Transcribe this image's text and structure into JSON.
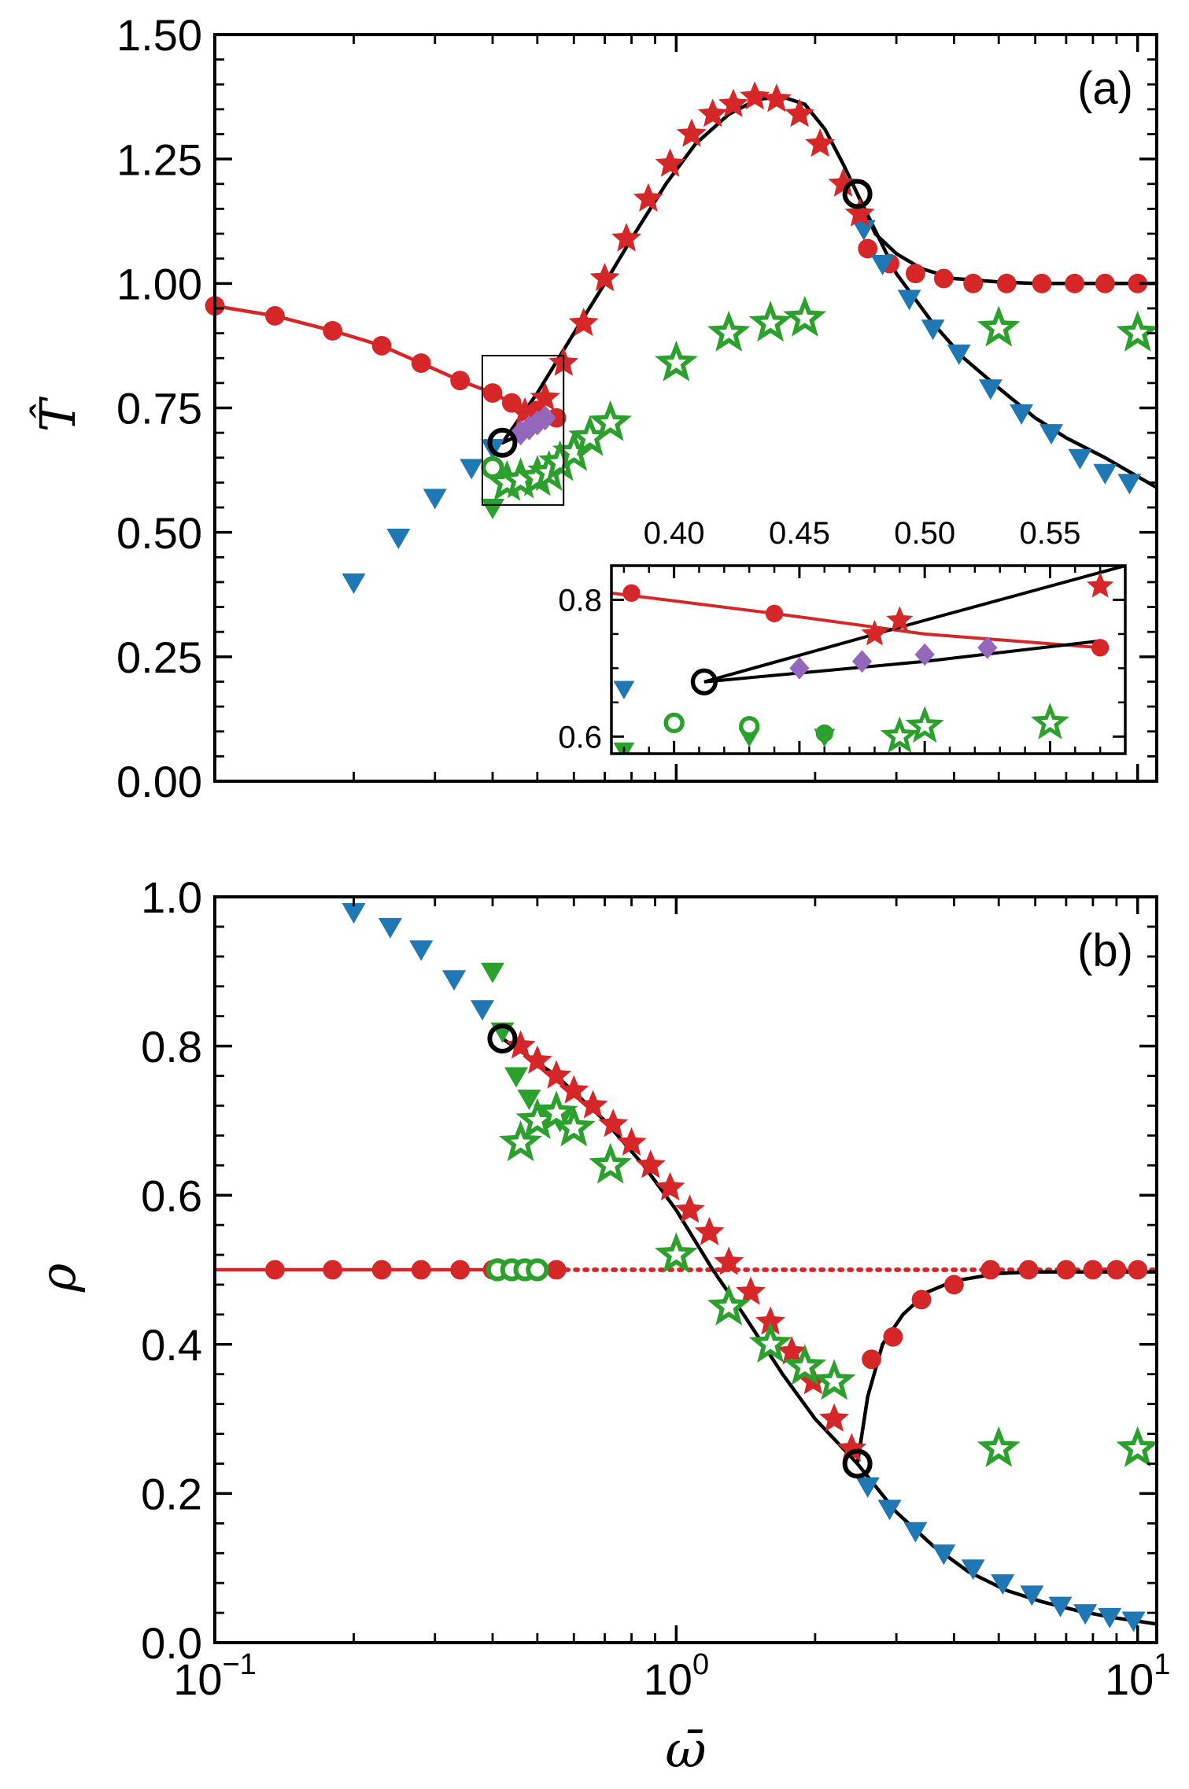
{
  "chart_data": [
    {
      "type": "scatter",
      "panel_label": "(a)",
      "ylabel": "T̂",
      "xlabel": "",
      "xscale": "log",
      "xlim": [
        0.1,
        11
      ],
      "ylim": [
        0,
        1.5
      ],
      "yticks": [
        "0.00",
        "0.25",
        "0.50",
        "0.75",
        "1.00",
        "1.25",
        "1.50"
      ],
      "colors": {
        "red": "#d62728",
        "blue": "#1f77b4",
        "green": "#2ca02c",
        "purple": "#9467bd",
        "black": "#000000"
      },
      "series": [
        {
          "name": "red-circles-line",
          "marker": "circle",
          "color": "#d62728",
          "line": "solid",
          "x": [
            0.1,
            0.135,
            0.18,
            0.23,
            0.28,
            0.34,
            0.4,
            0.44,
            0.5,
            0.55
          ],
          "y": [
            0.955,
            0.935,
            0.905,
            0.875,
            0.84,
            0.805,
            0.78,
            0.76,
            0.745,
            0.73
          ]
        },
        {
          "name": "red-circles-high",
          "marker": "circle",
          "color": "#d62728",
          "x": [
            2.6,
            2.9,
            3.3,
            3.8,
            4.4,
            5.2,
            6.2,
            7.3,
            8.5,
            10
          ],
          "y": [
            1.07,
            1.04,
            1.02,
            1.01,
            1.0,
            1.0,
            1.0,
            1.0,
            1.0,
            1.0
          ]
        },
        {
          "name": "red-stars",
          "marker": "star-filled",
          "color": "#d62728",
          "x": [
            0.47,
            0.52,
            0.57,
            0.63,
            0.7,
            0.78,
            0.87,
            0.97,
            1.08,
            1.2,
            1.33,
            1.48,
            1.65,
            1.85,
            2.05,
            2.3,
            2.5
          ],
          "y": [
            0.74,
            0.77,
            0.84,
            0.92,
            1.01,
            1.09,
            1.17,
            1.24,
            1.3,
            1.34,
            1.36,
            1.375,
            1.37,
            1.34,
            1.28,
            1.2,
            1.14
          ]
        },
        {
          "name": "blue-triangles",
          "marker": "triangle-down",
          "color": "#1f77b4",
          "x": [
            0.2,
            0.25,
            0.3,
            0.36,
            0.4,
            2.55,
            2.8,
            3.2,
            3.6,
            4.1,
            4.8,
            5.6,
            6.5,
            7.5,
            8.5,
            9.6
          ],
          "y": [
            0.4,
            0.49,
            0.57,
            0.63,
            0.67,
            1.11,
            1.04,
            0.97,
            0.91,
            0.86,
            0.79,
            0.74,
            0.7,
            0.65,
            0.62,
            0.6
          ]
        },
        {
          "name": "green-stars-open",
          "marker": "star-open",
          "color": "#2ca02c",
          "x": [
            0.43,
            0.46,
            0.5,
            0.53,
            0.56,
            0.6,
            0.65,
            0.72,
            1.0,
            1.3,
            1.6,
            1.9,
            5.0,
            10
          ],
          "y": [
            0.6,
            0.605,
            0.61,
            0.62,
            0.64,
            0.66,
            0.69,
            0.72,
            0.84,
            0.9,
            0.92,
            0.93,
            0.91,
            0.9
          ]
        },
        {
          "name": "green-triangle",
          "marker": "triangle-down",
          "color": "#2ca02c",
          "x": [
            0.4
          ],
          "y": [
            0.55
          ]
        },
        {
          "name": "green-circle-open",
          "marker": "circle-open",
          "color": "#2ca02c",
          "x": [
            0.4
          ],
          "y": [
            0.63
          ]
        },
        {
          "name": "purple-diamonds",
          "marker": "diamond",
          "color": "#9467bd",
          "x": [
            0.46,
            0.48,
            0.5,
            0.52
          ],
          "y": [
            0.7,
            0.71,
            0.72,
            0.73
          ]
        },
        {
          "name": "black-fit-curves",
          "marker": "none",
          "color": "#000000",
          "line": "solid",
          "curves": [
            {
              "x": [
                0.42,
                0.5,
                0.6,
                0.7,
                0.8,
                0.95,
                1.1,
                1.3,
                1.5,
                1.7,
                1.9,
                2.1,
                2.3,
                2.47
              ],
              "y": [
                0.68,
                0.78,
                0.9,
                1.0,
                1.09,
                1.2,
                1.28,
                1.34,
                1.37,
                1.375,
                1.36,
                1.31,
                1.24,
                1.18
              ]
            },
            {
              "x": [
                0.42,
                0.47,
                0.52,
                0.55
              ],
              "y": [
                0.68,
                0.7,
                0.72,
                0.73
              ]
            },
            {
              "x": [
                2.47,
                2.7,
                3.0,
                3.4,
                4.0,
                5.0,
                6.0,
                8.0,
                11
              ],
              "y": [
                1.18,
                1.1,
                1.06,
                1.03,
                1.01,
                1.003,
                1.0,
                1.0,
                1.0
              ]
            },
            {
              "x": [
                2.47,
                3.0,
                3.6,
                4.2,
                5.0,
                6.0,
                7.0,
                8.5,
                11
              ],
              "y": [
                1.18,
                1.02,
                0.92,
                0.85,
                0.79,
                0.73,
                0.69,
                0.65,
                0.59
              ]
            }
          ]
        },
        {
          "name": "critical-points",
          "marker": "circle-open-large",
          "color": "#000000",
          "x": [
            0.42,
            2.47
          ],
          "y": [
            0.68,
            1.18
          ]
        }
      ],
      "inset": {
        "xlim": [
          0.375,
          0.58
        ],
        "ylim": [
          0.575,
          0.85
        ],
        "xticks": [
          "0.40",
          "0.45",
          "0.50",
          "0.55"
        ],
        "yticks": [
          "0.6",
          "0.8"
        ],
        "source_box": {
          "x": [
            0.38,
            0.57
          ],
          "y": [
            0.555,
            0.855
          ]
        },
        "series": [
          {
            "name": "inset-red-circles",
            "marker": "circle",
            "color": "#d62728",
            "x": [
              0.383,
              0.44,
              0.57
            ],
            "y": [
              0.81,
              0.78,
              0.73
            ]
          },
          {
            "name": "inset-red-stars",
            "marker": "star-filled",
            "color": "#d62728",
            "x": [
              0.48,
              0.49,
              0.57
            ],
            "y": [
              0.75,
              0.77,
              0.82
            ]
          },
          {
            "name": "inset-purple-diamonds",
            "marker": "diamond",
            "color": "#9467bd",
            "x": [
              0.45,
              0.475,
              0.5,
              0.525
            ],
            "y": [
              0.7,
              0.71,
              0.72,
              0.73
            ]
          },
          {
            "name": "inset-blue-triangle",
            "marker": "triangle-down",
            "color": "#1f77b4",
            "x": [
              0.38
            ],
            "y": [
              0.67
            ]
          },
          {
            "name": "inset-green-stars",
            "marker": "star-open",
            "color": "#2ca02c",
            "x": [
              0.49,
              0.5,
              0.55
            ],
            "y": [
              0.6,
              0.615,
              0.62
            ]
          },
          {
            "name": "inset-green-circle-open",
            "marker": "circle-open",
            "color": "#2ca02c",
            "x": [
              0.4,
              0.43
            ],
            "y": [
              0.62,
              0.615
            ]
          },
          {
            "name": "inset-green-circle",
            "marker": "circle",
            "color": "#2ca02c",
            "x": [
              0.46
            ],
            "y": [
              0.605
            ]
          },
          {
            "name": "inset-green-triangles",
            "marker": "triangle-down",
            "color": "#2ca02c",
            "x": [
              0.38,
              0.43,
              0.46
            ],
            "y": [
              0.58,
              0.6,
              0.6
            ]
          },
          {
            "name": "inset-red-line",
            "marker": "none",
            "color": "#d62728",
            "line": "solid",
            "x": [
              0.375,
              0.44,
              0.5,
              0.57
            ],
            "y": [
              0.81,
              0.78,
              0.75,
              0.73
            ]
          },
          {
            "name": "inset-black-line-upper",
            "marker": "none",
            "color": "#000000",
            "line": "solid",
            "x": [
              0.412,
              0.5,
              0.58
            ],
            "y": [
              0.68,
              0.77,
              0.85
            ]
          },
          {
            "name": "inset-black-line-lower",
            "marker": "none",
            "color": "#000000",
            "line": "solid",
            "x": [
              0.412,
              0.5,
              0.57
            ],
            "y": [
              0.68,
              0.71,
              0.74
            ]
          },
          {
            "name": "inset-critical-point",
            "marker": "circle-open-large",
            "color": "#000000",
            "x": [
              0.412
            ],
            "y": [
              0.68
            ]
          }
        ]
      }
    },
    {
      "type": "scatter",
      "panel_label": "(b)",
      "ylabel": "ρ",
      "xlabel": "ω̄",
      "xscale": "log",
      "xlim": [
        0.1,
        11
      ],
      "ylim": [
        0,
        1.0
      ],
      "yticks": [
        "0.0",
        "0.2",
        "0.4",
        "0.6",
        "0.8",
        "1.0"
      ],
      "xticks": [
        {
          "base": "10",
          "exp": "−1"
        },
        {
          "base": "10",
          "exp": "0"
        },
        {
          "base": "10",
          "exp": "1"
        }
      ],
      "series": [
        {
          "name": "red-circles-flat",
          "marker": "circle",
          "color": "#d62728",
          "x": [
            0.135,
            0.18,
            0.23,
            0.28,
            0.34,
            0.4,
            0.44,
            0.5,
            0.55
          ],
          "y": [
            0.5,
            0.5,
            0.5,
            0.5,
            0.5,
            0.5,
            0.5,
            0.5,
            0.5
          ]
        },
        {
          "name": "red-circles-high",
          "marker": "circle",
          "color": "#d62728",
          "x": [
            2.65,
            2.95,
            3.4,
            4.0,
            4.8,
            5.8,
            7.0,
            8.0,
            9.0,
            10
          ],
          "y": [
            0.38,
            0.41,
            0.46,
            0.48,
            0.5,
            0.5,
            0.5,
            0.5,
            0.5,
            0.5
          ]
        },
        {
          "name": "red-stars",
          "marker": "star-filled",
          "color": "#d62728",
          "x": [
            0.46,
            0.5,
            0.55,
            0.6,
            0.66,
            0.73,
            0.8,
            0.88,
            0.97,
            1.07,
            1.18,
            1.3,
            1.45,
            1.6,
            1.78,
            1.98,
            2.2,
            2.4
          ],
          "y": [
            0.8,
            0.78,
            0.76,
            0.74,
            0.72,
            0.695,
            0.67,
            0.64,
            0.61,
            0.58,
            0.55,
            0.51,
            0.47,
            0.43,
            0.39,
            0.35,
            0.3,
            0.26
          ]
        },
        {
          "name": "blue-triangles",
          "marker": "triangle-down",
          "color": "#1f77b4",
          "x": [
            0.2,
            0.24,
            0.28,
            0.33,
            0.38,
            2.6,
            2.9,
            3.3,
            3.8,
            4.4,
            5.1,
            5.9,
            6.8,
            7.7,
            8.7,
            9.8
          ],
          "y": [
            0.98,
            0.96,
            0.93,
            0.89,
            0.85,
            0.21,
            0.18,
            0.15,
            0.12,
            0.1,
            0.08,
            0.065,
            0.05,
            0.04,
            0.035,
            0.03
          ]
        },
        {
          "name": "green-triangles",
          "marker": "triangle-down",
          "color": "#2ca02c",
          "x": [
            0.4,
            0.42,
            0.45,
            0.48,
            0.52,
            0.56
          ],
          "y": [
            0.9,
            0.82,
            0.76,
            0.73,
            0.71,
            0.7
          ]
        },
        {
          "name": "green-stars-open",
          "marker": "star-open",
          "color": "#2ca02c",
          "x": [
            0.46,
            0.5,
            0.55,
            0.6,
            0.72,
            1.0,
            1.3,
            1.6,
            1.9,
            2.2,
            5.0,
            10
          ],
          "y": [
            0.67,
            0.7,
            0.71,
            0.69,
            0.64,
            0.52,
            0.45,
            0.4,
            0.37,
            0.35,
            0.26,
            0.26
          ]
        },
        {
          "name": "green-circles-open",
          "marker": "circle-open",
          "color": "#2ca02c",
          "x": [
            0.41,
            0.44,
            0.47,
            0.5
          ],
          "y": [
            0.5,
            0.5,
            0.5,
            0.5
          ]
        },
        {
          "name": "red-dotted-line",
          "marker": "none",
          "color": "#d62728",
          "line": "dotted",
          "x": [
            0.55,
            11
          ],
          "y": [
            0.5,
            0.5
          ]
        },
        {
          "name": "red-solid-line",
          "marker": "none",
          "color": "#d62728",
          "line": "solid",
          "x": [
            0.1,
            0.55
          ],
          "y": [
            0.5,
            0.5
          ]
        },
        {
          "name": "black-fit-curves",
          "marker": "none",
          "color": "#000000",
          "line": "solid",
          "curves": [
            {
              "x": [
                0.42,
                0.55,
                0.7,
                0.85,
                1.0,
                1.2,
                1.4,
                1.7,
                2.0,
                2.47
              ],
              "y": [
                0.81,
                0.76,
                0.7,
                0.64,
                0.58,
                0.5,
                0.44,
                0.36,
                0.3,
                0.24
              ]
            },
            {
              "x": [
                2.47,
                2.6,
                2.8,
                3.1,
                3.5,
                4.0,
                5.0,
                6.0,
                8.0,
                11
              ],
              "y": [
                0.24,
                0.33,
                0.4,
                0.44,
                0.47,
                0.485,
                0.495,
                0.497,
                0.497,
                0.497
              ]
            },
            {
              "x": [
                2.47,
                3.0,
                3.6,
                4.3,
                5.2,
                6.2,
                7.5,
                9.0,
                11
              ],
              "y": [
                0.24,
                0.175,
                0.13,
                0.095,
                0.07,
                0.055,
                0.042,
                0.033,
                0.025
              ]
            }
          ]
        },
        {
          "name": "critical-points",
          "marker": "circle-open-large",
          "color": "#000000",
          "x": [
            0.42,
            2.47
          ],
          "y": [
            0.81,
            0.24
          ]
        }
      ]
    }
  ]
}
